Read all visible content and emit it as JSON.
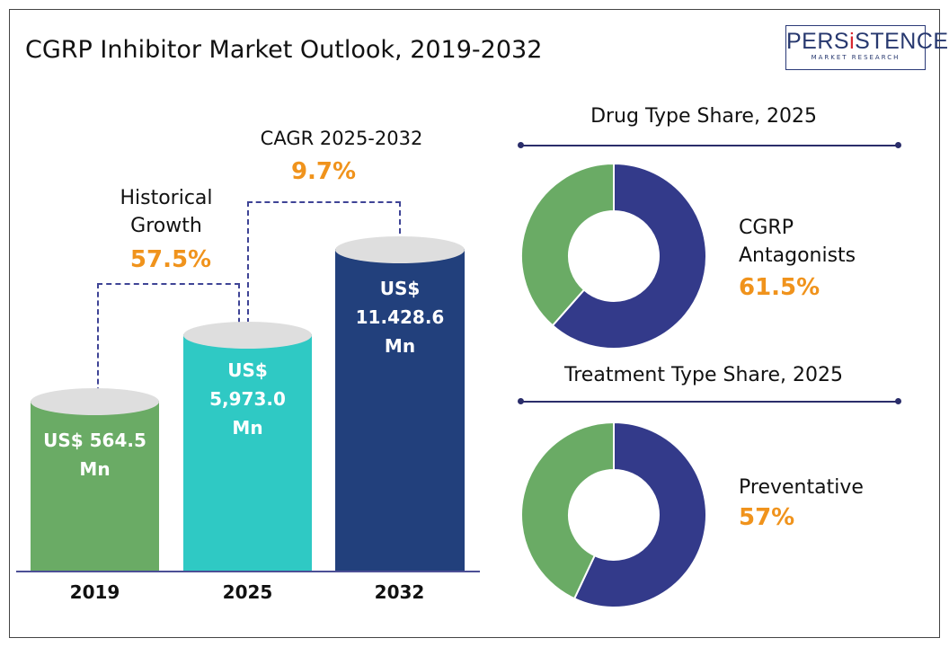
{
  "title": "CGRP Inhibitor Market Outlook, 2019-2032",
  "logo": {
    "main_pre": "PERS",
    "main_i": "i",
    "main_post": "STENCE",
    "sub": "MARKET RESEARCH"
  },
  "annotations": {
    "historical_label_1": "Historical",
    "historical_label_2": "Growth",
    "historical_value": "57.5%",
    "cagr_label": "CAGR 2025-2032",
    "cagr_value": "9.7%"
  },
  "chart_data": [
    {
      "type": "bar",
      "categories": [
        "2019",
        "2025",
        "2032"
      ],
      "values": [
        564.5,
        5973.0,
        11428.6
      ],
      "data_labels": [
        [
          "US$ 564.5",
          "Mn"
        ],
        [
          "US$",
          "5,973.0",
          "Mn"
        ],
        [
          "US$",
          "11.428.6",
          "Mn"
        ]
      ],
      "colors": [
        "#6aab65",
        "#2fc9c4",
        "#22407c"
      ]
    },
    {
      "type": "pie",
      "title": "Drug Type Share, 2025",
      "slices": [
        {
          "label": "CGRP Antagonists",
          "value": 61.5,
          "color": "#333a8a"
        },
        {
          "value": 38.5,
          "color": "#6aab65"
        }
      ],
      "callout_label_1": "CGRP",
      "callout_label_2": "Antagonists",
      "callout_value": "61.5%"
    },
    {
      "type": "pie",
      "title": "Treatment Type Share, 2025",
      "slices": [
        {
          "label": "Preventative",
          "value": 57,
          "color": "#333a8a"
        },
        {
          "value": 43,
          "color": "#6aab65"
        }
      ],
      "callout_label": "Preventative",
      "callout_value": "57%"
    }
  ]
}
